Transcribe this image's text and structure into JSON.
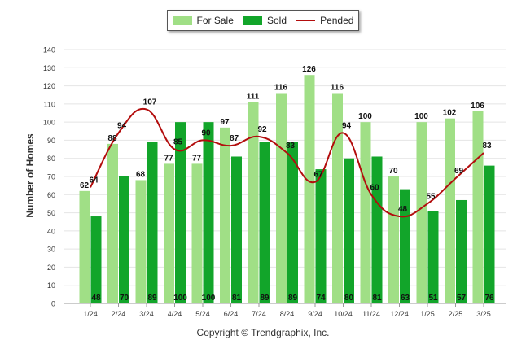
{
  "colors": {
    "for_sale": "#a0df86",
    "sold": "#12a52a",
    "pended": "#b30d0d",
    "grid": "#e4e4e4",
    "axis_text": "#333333"
  },
  "legend": {
    "for_sale": "For Sale",
    "sold": "Sold",
    "pended": "Pended"
  },
  "copyright": "Copyright © Trendgraphix, Inc.",
  "chart_data": {
    "type": "bar",
    "ylabel": "Number of Homes",
    "ylim": [
      0,
      140
    ],
    "yticks": [
      0,
      10,
      20,
      30,
      40,
      50,
      60,
      70,
      80,
      90,
      100,
      110,
      120,
      130,
      140
    ],
    "grid": true,
    "legend_position": "top-center",
    "categories": [
      "1/24",
      "2/24",
      "3/24",
      "4/24",
      "5/24",
      "6/24",
      "7/24",
      "8/24",
      "9/24",
      "10/24",
      "11/24",
      "12/24",
      "1/25",
      "2/25",
      "3/25"
    ],
    "series": [
      {
        "name": "For Sale",
        "type": "bar",
        "values": [
          62,
          88,
          68,
          77,
          77,
          97,
          111,
          116,
          126,
          116,
          100,
          70,
          100,
          102,
          106
        ]
      },
      {
        "name": "Sold",
        "type": "bar",
        "values": [
          48,
          70,
          89,
          100,
          100,
          81,
          89,
          89,
          74,
          80,
          81,
          63,
          51,
          57,
          76
        ]
      },
      {
        "name": "Pended",
        "type": "line",
        "values": [
          64,
          94,
          107,
          85,
          90,
          87,
          92,
          83,
          67,
          94,
          60,
          48,
          55,
          69,
          83
        ]
      }
    ]
  }
}
